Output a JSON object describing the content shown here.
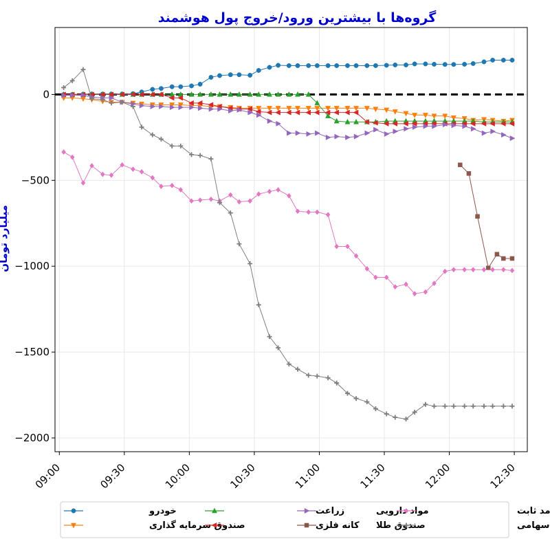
{
  "chart_data": {
    "type": "line",
    "title": "گروه‌ها با بیشترین ورود/خروج پول هوشمند",
    "ylabel": "میلیارد تومان",
    "xlabel": "",
    "xlim": [
      "08:58",
      "12:36"
    ],
    "ylim": [
      -2080,
      390
    ],
    "x_ticks": [
      "09:00",
      "09:30",
      "10:00",
      "10:30",
      "11:00",
      "11:30",
      "12:00",
      "12:30"
    ],
    "y_ticks": [
      0,
      -500,
      -1000,
      -1500,
      -2000
    ],
    "y_tick_labels": [
      "0",
      "−500",
      "−1000",
      "−1500",
      "−2000"
    ],
    "reference_line": {
      "y": 0,
      "style": "dashed",
      "color": "#000000"
    },
    "grid": true,
    "legend": {
      "position": "bottom",
      "columns": 4
    },
    "series": [
      {
        "name": "خودرو",
        "color": "#1f77b4",
        "marker": "circle",
        "x": [
          "09:02",
          "09:06",
          "09:11",
          "09:15",
          "09:20",
          "09:24",
          "09:29",
          "09:34",
          "09:38",
          "09:43",
          "09:47",
          "09:52",
          "09:56",
          "10:01",
          "10:05",
          "10:10",
          "10:14",
          "10:19",
          "10:23",
          "10:28",
          "10:32",
          "10:37",
          "10:41",
          "10:46",
          "10:50",
          "10:55",
          "10:59",
          "11:04",
          "11:08",
          "11:13",
          "11:17",
          "11:22",
          "11:26",
          "11:31",
          "11:35",
          "11:40",
          "11:44",
          "11:49",
          "11:53",
          "11:58",
          "12:02",
          "12:07",
          "12:11",
          "12:16",
          "12:20",
          "12:25",
          "12:29"
        ],
        "y": [
          0,
          0,
          2,
          3,
          3,
          3,
          3,
          5,
          15,
          30,
          35,
          45,
          45,
          50,
          60,
          100,
          110,
          115,
          115,
          112,
          140,
          158,
          170,
          168,
          168,
          168,
          168,
          168,
          168,
          168,
          168,
          168,
          168,
          170,
          172,
          172,
          178,
          178,
          176,
          175,
          175,
          176,
          180,
          190,
          200,
          200,
          200
        ]
      },
      {
        "name": "صندوق سرمایه گذاری",
        "color": "#ff7f0e",
        "marker": "triangle-down",
        "x": [
          "09:02",
          "09:06",
          "09:11",
          "09:15",
          "09:20",
          "09:24",
          "09:29",
          "09:34",
          "09:38",
          "09:43",
          "09:47",
          "09:52",
          "09:56",
          "10:01",
          "10:05",
          "10:10",
          "10:14",
          "10:19",
          "10:23",
          "10:28",
          "10:32",
          "10:37",
          "10:41",
          "10:46",
          "10:50",
          "10:55",
          "10:59",
          "11:04",
          "11:08",
          "11:13",
          "11:17",
          "11:22",
          "11:26",
          "11:31",
          "11:35",
          "11:40",
          "11:44",
          "11:49",
          "11:53",
          "11:58",
          "12:02",
          "12:07",
          "12:11",
          "12:16",
          "12:20",
          "12:25",
          "12:29"
        ],
        "y": [
          -20,
          -20,
          -25,
          -30,
          -40,
          -45,
          -45,
          -50,
          -55,
          -60,
          -60,
          -60,
          -60,
          -65,
          -65,
          -70,
          -70,
          -75,
          -80,
          -80,
          -80,
          -80,
          -80,
          -80,
          -80,
          -80,
          -80,
          -80,
          -80,
          -80,
          -80,
          -80,
          -85,
          -90,
          -100,
          -110,
          -120,
          -120,
          -125,
          -125,
          -135,
          -140,
          -150,
          -145,
          -150,
          -155,
          -150
        ]
      },
      {
        "name": "زراعت",
        "color": "#2ca02c",
        "marker": "triangle-up",
        "x": [
          "09:02",
          "09:06",
          "09:11",
          "09:15",
          "09:20",
          "09:24",
          "09:29",
          "09:34",
          "09:38",
          "09:43",
          "09:47",
          "09:52",
          "09:56",
          "10:01",
          "10:05",
          "10:10",
          "10:14",
          "10:19",
          "10:23",
          "10:28",
          "10:32",
          "10:37",
          "10:41",
          "10:46",
          "10:50",
          "10:55",
          "10:59",
          "11:04",
          "11:08",
          "11:13",
          "11:17",
          "11:22",
          "11:26",
          "11:31",
          "11:35",
          "11:40",
          "11:44",
          "11:49",
          "11:53",
          "11:58",
          "12:02",
          "12:07",
          "12:11",
          "12:16",
          "12:20",
          "12:25",
          "12:29"
        ],
        "y": [
          0,
          0,
          0,
          0,
          0,
          0,
          0,
          0,
          0,
          0,
          0,
          0,
          0,
          0,
          0,
          0,
          0,
          0,
          0,
          0,
          0,
          0,
          0,
          0,
          0,
          0,
          -50,
          -125,
          -155,
          -160,
          -160,
          -160,
          -160,
          -155,
          -155,
          -155,
          -155,
          -155,
          -155,
          -155,
          -155,
          -155,
          -155,
          -160,
          -160,
          -160,
          -160
        ]
      },
      {
        "name": "کانه فلزی",
        "color": "#d62728",
        "marker": "triangle-left",
        "x": [
          "09:02",
          "09:06",
          "09:11",
          "09:15",
          "09:20",
          "09:24",
          "09:29",
          "09:34",
          "09:38",
          "09:43",
          "09:47",
          "09:52",
          "09:56",
          "10:01",
          "10:05",
          "10:10",
          "10:14",
          "10:19",
          "10:23",
          "10:28",
          "10:32",
          "10:37",
          "10:41",
          "10:46",
          "10:50",
          "10:55",
          "10:59",
          "11:04",
          "11:08",
          "11:13",
          "11:17",
          "11:22",
          "11:26",
          "11:31",
          "11:35",
          "11:40",
          "11:44",
          "11:49",
          "11:53",
          "11:58",
          "12:02",
          "12:07",
          "12:11",
          "12:16",
          "12:20",
          "12:25",
          "12:29"
        ],
        "y": [
          0,
          0,
          0,
          0,
          0,
          0,
          0,
          0,
          0,
          0,
          0,
          -20,
          -20,
          -50,
          -50,
          -60,
          -70,
          -80,
          -85,
          -85,
          -100,
          -105,
          -105,
          -105,
          -105,
          -105,
          -105,
          -105,
          -105,
          -105,
          -105,
          -160,
          -165,
          -170,
          -170,
          -170,
          -170,
          -170,
          -170,
          -170,
          -170,
          -170,
          -170,
          -170,
          -170,
          -170,
          -170
        ]
      },
      {
        "name": "مواد دارویی",
        "color": "#9467bd",
        "marker": "triangle-right",
        "x": [
          "09:02",
          "09:06",
          "09:11",
          "09:15",
          "09:20",
          "09:24",
          "09:29",
          "09:34",
          "09:38",
          "09:43",
          "09:47",
          "09:52",
          "09:56",
          "10:01",
          "10:05",
          "10:10",
          "10:14",
          "10:19",
          "10:23",
          "10:28",
          "10:32",
          "10:37",
          "10:41",
          "10:46",
          "10:50",
          "10:55",
          "10:59",
          "11:04",
          "11:08",
          "11:13",
          "11:17",
          "11:22",
          "11:26",
          "11:31",
          "11:35",
          "11:40",
          "11:44",
          "11:49",
          "11:53",
          "11:58",
          "12:02",
          "12:07",
          "12:11",
          "12:16",
          "12:20",
          "12:25",
          "12:29"
        ],
        "y": [
          -5,
          -5,
          -5,
          -15,
          -20,
          -20,
          -45,
          -55,
          -65,
          -70,
          -70,
          -75,
          -75,
          -75,
          -80,
          -85,
          -85,
          -95,
          -90,
          -105,
          -120,
          -155,
          -170,
          -225,
          -225,
          -230,
          -225,
          -250,
          -245,
          -250,
          -245,
          -225,
          -205,
          -230,
          -215,
          -200,
          -190,
          -185,
          -185,
          -175,
          -180,
          -185,
          -200,
          -225,
          -215,
          -235,
          -255
        ]
      },
      {
        "name": "صندوق طلا",
        "color": "#8c564b",
        "marker": "square",
        "x": [
          "12:05",
          "12:09",
          "12:13",
          "12:18",
          "12:22",
          "12:25",
          "12:29"
        ],
        "y": [
          -410,
          -460,
          -710,
          -1010,
          -930,
          -955,
          -955
        ]
      },
      {
        "name": "صندوق درآمد ثابت",
        "color": "#e377c2",
        "marker": "diamond",
        "x": [
          "09:02",
          "09:06",
          "09:11",
          "09:15",
          "09:20",
          "09:24",
          "09:29",
          "09:34",
          "09:38",
          "09:43",
          "09:47",
          "09:52",
          "09:56",
          "10:01",
          "10:05",
          "10:10",
          "10:14",
          "10:19",
          "10:23",
          "10:28",
          "10:32",
          "10:37",
          "10:41",
          "10:46",
          "10:50",
          "10:55",
          "10:59",
          "11:04",
          "11:08",
          "11:13",
          "11:17",
          "11:22",
          "11:26",
          "11:31",
          "11:35",
          "11:40",
          "11:44",
          "11:49",
          "11:53",
          "11:58",
          "12:02",
          "12:07",
          "12:11",
          "12:16",
          "12:20",
          "12:25",
          "12:29"
        ],
        "y": [
          -335,
          -365,
          -515,
          -415,
          -465,
          -470,
          -410,
          -435,
          -450,
          -485,
          -535,
          -530,
          -555,
          -620,
          -615,
          -610,
          -620,
          -585,
          -625,
          -620,
          -580,
          -565,
          -555,
          -590,
          -680,
          -685,
          -685,
          -700,
          -885,
          -885,
          -940,
          -1015,
          -1065,
          -1065,
          -1120,
          -1105,
          -1160,
          -1150,
          -1100,
          -1030,
          -1020,
          -1020,
          -1020,
          -1020,
          -1020,
          -1020,
          -1025
        ]
      },
      {
        "name": "صندوق سهامی",
        "color": "#7f7f7f",
        "marker": "plus",
        "x": [
          "09:02",
          "09:06",
          "09:11",
          "09:15",
          "09:20",
          "09:24",
          "09:29",
          "09:34",
          "09:38",
          "09:43",
          "09:47",
          "09:52",
          "09:56",
          "10:01",
          "10:05",
          "10:10",
          "10:14",
          "10:19",
          "10:23",
          "10:28",
          "10:32",
          "10:37",
          "10:41",
          "10:46",
          "10:50",
          "10:55",
          "10:59",
          "11:04",
          "11:08",
          "11:13",
          "11:17",
          "11:22",
          "11:26",
          "11:31",
          "11:35",
          "11:40",
          "11:44",
          "11:49",
          "11:53",
          "11:58",
          "12:02",
          "12:07",
          "12:11",
          "12:16",
          "12:20",
          "12:25",
          "12:29"
        ],
        "y": [
          40,
          80,
          145,
          -25,
          -30,
          -50,
          -45,
          -70,
          -190,
          -235,
          -260,
          -300,
          -300,
          -350,
          -355,
          -375,
          -630,
          -690,
          -870,
          -985,
          -1225,
          -1410,
          -1475,
          -1570,
          -1600,
          -1635,
          -1640,
          -1650,
          -1680,
          -1740,
          -1770,
          -1790,
          -1830,
          -1860,
          -1880,
          -1890,
          -1850,
          -1805,
          -1815,
          -1815,
          -1815,
          -1815,
          -1815,
          -1815,
          -1815,
          -1815,
          -1815
        ]
      }
    ]
  }
}
